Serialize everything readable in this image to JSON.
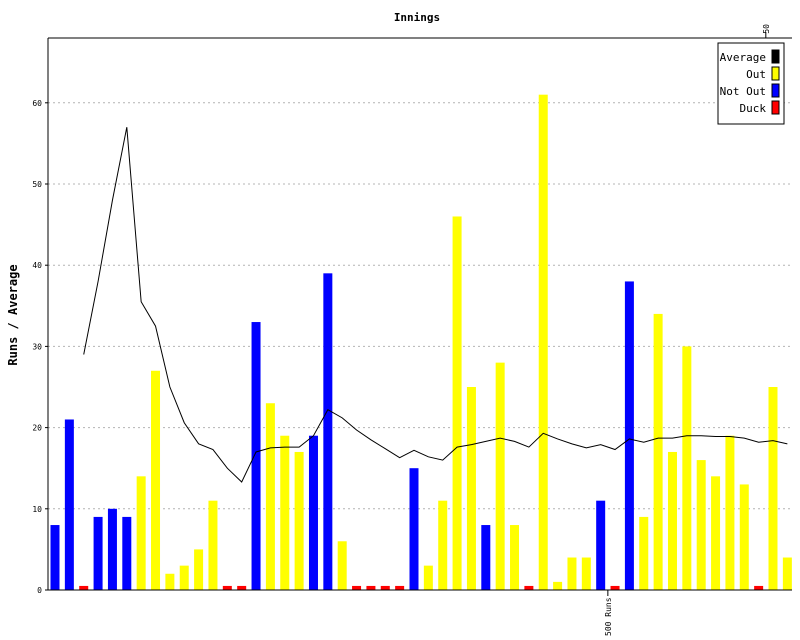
{
  "chart_data": {
    "type": "bar",
    "title": "Innings",
    "ylabel": "Runs / Average",
    "xlabel": "",
    "ylim": [
      0,
      68
    ],
    "yticks": [
      0,
      10,
      20,
      30,
      40,
      50,
      60
    ],
    "grid": true,
    "legend_position": "top-right",
    "legend": [
      {
        "label": "Average",
        "color": "#000000"
      },
      {
        "label": "Out",
        "color": "#ffff00"
      },
      {
        "label": "Not Out",
        "color": "#0000ff"
      },
      {
        "label": "Duck",
        "color": "#ff0000"
      }
    ],
    "innings": [
      {
        "runs": 8,
        "status": "not_out"
      },
      {
        "runs": 21,
        "status": "not_out"
      },
      {
        "runs": 0,
        "status": "duck"
      },
      {
        "runs": 9,
        "status": "not_out"
      },
      {
        "runs": 10,
        "status": "not_out"
      },
      {
        "runs": 9,
        "status": "not_out"
      },
      {
        "runs": 14,
        "status": "out"
      },
      {
        "runs": 27,
        "status": "out"
      },
      {
        "runs": 2,
        "status": "out"
      },
      {
        "runs": 3,
        "status": "out"
      },
      {
        "runs": 5,
        "status": "out"
      },
      {
        "runs": 11,
        "status": "out"
      },
      {
        "runs": 0,
        "status": "duck"
      },
      {
        "runs": 0,
        "status": "duck"
      },
      {
        "runs": 33,
        "status": "not_out"
      },
      {
        "runs": 23,
        "status": "out"
      },
      {
        "runs": 19,
        "status": "out"
      },
      {
        "runs": 17,
        "status": "out"
      },
      {
        "runs": 19,
        "status": "not_out"
      },
      {
        "runs": 39,
        "status": "not_out"
      },
      {
        "runs": 6,
        "status": "out"
      },
      {
        "runs": 0,
        "status": "duck"
      },
      {
        "runs": 0,
        "status": "duck"
      },
      {
        "runs": 0,
        "status": "duck"
      },
      {
        "runs": 0,
        "status": "duck"
      },
      {
        "runs": 15,
        "status": "not_out"
      },
      {
        "runs": 3,
        "status": "out"
      },
      {
        "runs": 11,
        "status": "out"
      },
      {
        "runs": 46,
        "status": "out"
      },
      {
        "runs": 25,
        "status": "out"
      },
      {
        "runs": 8,
        "status": "not_out"
      },
      {
        "runs": 28,
        "status": "out"
      },
      {
        "runs": 8,
        "status": "out"
      },
      {
        "runs": 0,
        "status": "duck"
      },
      {
        "runs": 61,
        "status": "out"
      },
      {
        "runs": 1,
        "status": "out"
      },
      {
        "runs": 4,
        "status": "out"
      },
      {
        "runs": 4,
        "status": "out"
      },
      {
        "runs": 11,
        "status": "not_out"
      },
      {
        "runs": 0,
        "status": "duck"
      },
      {
        "runs": 38,
        "status": "not_out"
      },
      {
        "runs": 9,
        "status": "out"
      },
      {
        "runs": 34,
        "status": "out"
      },
      {
        "runs": 17,
        "status": "out"
      },
      {
        "runs": 30,
        "status": "out"
      },
      {
        "runs": 16,
        "status": "out"
      },
      {
        "runs": 14,
        "status": "out"
      },
      {
        "runs": 19,
        "status": "out"
      },
      {
        "runs": 13,
        "status": "out"
      },
      {
        "runs": 0,
        "status": "duck"
      },
      {
        "runs": 25,
        "status": "out"
      },
      {
        "runs": 4,
        "status": "out"
      }
    ],
    "average": [
      null,
      null,
      29,
      38,
      48,
      57,
      35.5,
      32.5,
      25,
      20.6,
      18,
      17.3,
      15,
      13.3,
      17,
      17.5,
      17.6,
      17.6,
      19,
      22.2,
      21.2,
      19.7,
      18.5,
      17.4,
      16.3,
      17.2,
      16.4,
      16,
      17.6,
      17.9,
      18.3,
      18.7,
      18.3,
      17.6,
      19.3,
      18.6,
      18,
      17.5,
      17.9,
      17.3,
      18.6,
      18.2,
      18.7,
      18.7,
      19,
      19,
      18.9,
      18.9,
      18.7,
      18.2,
      18.4,
      18
    ],
    "markers": [
      {
        "index": 38.5,
        "label": "500 Runs",
        "position": "bottom"
      },
      {
        "index": 49.5,
        "label": "50",
        "position": "top"
      }
    ]
  }
}
